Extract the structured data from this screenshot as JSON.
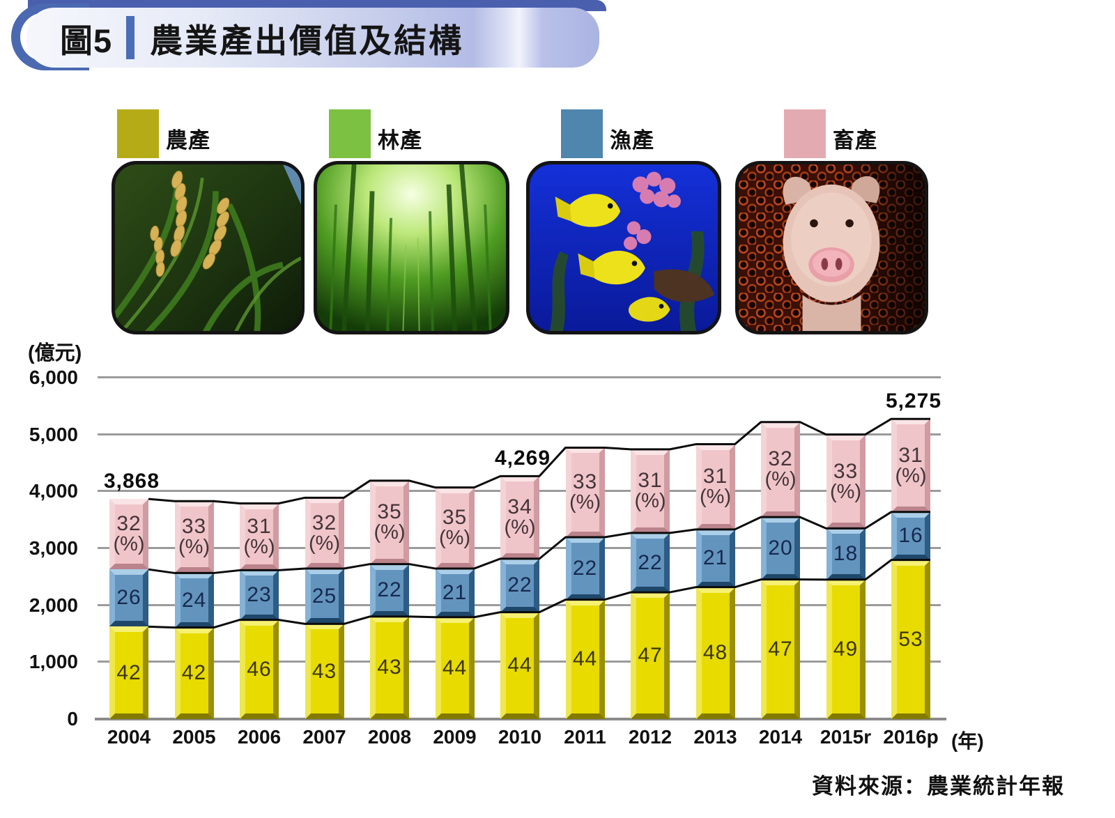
{
  "banner": {
    "figure_label": "圖5",
    "title": "農業產出價值及結構"
  },
  "legend": [
    {
      "label": "農產",
      "color": "#b5ab17",
      "photo": "rice-crop"
    },
    {
      "label": "林產",
      "color": "#7cc142",
      "photo": "bamboo-forest"
    },
    {
      "label": "漁產",
      "color": "#4e86ad",
      "photo": "tropical-fish"
    },
    {
      "label": "畜產",
      "color": "#e3abb1",
      "photo": "piglet"
    }
  ],
  "axis": {
    "y_title": "(億元)",
    "y_ticks": [
      "0",
      "1,000",
      "2,000",
      "3,000",
      "4,000",
      "5,000",
      "6,000"
    ],
    "x_suffix": "(年)"
  },
  "source": "資料來源：農業統計年報",
  "chart_data": {
    "type": "bar",
    "stacked": true,
    "unit": "億元",
    "title": "農業產出價值及結構",
    "ylim": [
      0,
      6000
    ],
    "grid_interval": 1000,
    "categories": [
      "2004",
      "2005",
      "2006",
      "2007",
      "2008",
      "2009",
      "2010",
      "2011",
      "2012",
      "2013",
      "2014",
      "2015r",
      "2016p"
    ],
    "totals": [
      3868,
      3830,
      3790,
      3890,
      4190,
      4070,
      4269,
      4770,
      4740,
      4830,
      5220,
      5000,
      5275
    ],
    "total_labels": {
      "2004": "3,868",
      "2010": "4,269",
      "2016p": "5,275"
    },
    "series": [
      {
        "name": "農產",
        "unit": "%",
        "color": "#e7db00",
        "bevel": {
          "top": "#f6f172",
          "left": "#eee74e",
          "right": "#9a8f00",
          "bottom": "#837a00"
        },
        "label_color": "#3c3512",
        "pct": [
          42,
          42,
          46,
          43,
          43,
          44,
          44,
          44,
          47,
          48,
          47,
          49,
          53
        ]
      },
      {
        "name": "漁產",
        "unit": "%",
        "color": "#6394be",
        "bevel": {
          "top": "#abcfe8",
          "left": "#85b2d6",
          "right": "#2d5c84",
          "bottom": "#1e4769"
        },
        "label_color": "#16294d",
        "pct": [
          26,
          24,
          23,
          25,
          22,
          21,
          22,
          22,
          22,
          21,
          20,
          18,
          16
        ]
      },
      {
        "name": "畜產",
        "unit": "%",
        "color": "#f0c5c9",
        "bevel": {
          "top": "#fae4e6",
          "left": "#f4d3d6",
          "right": "#d09ba1",
          "bottom": "#bb838c"
        },
        "label_color": "#433438",
        "label_suffix": "(%)",
        "pct": [
          32,
          33,
          31,
          32,
          35,
          35,
          34,
          33,
          31,
          31,
          32,
          33,
          31
        ]
      }
    ],
    "note_series_line_color": "#0b0b0b"
  }
}
